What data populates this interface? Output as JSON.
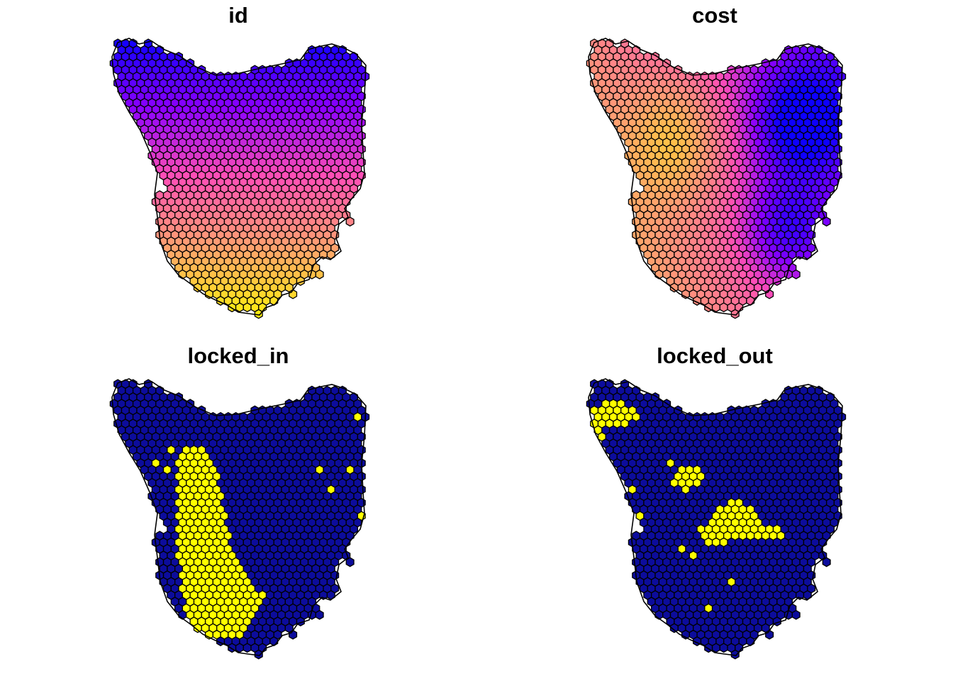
{
  "figure": {
    "panels": [
      {
        "id": "id",
        "title": "id",
        "field": "id",
        "palette": "continuous"
      },
      {
        "id": "cost",
        "title": "cost",
        "field": "cost",
        "palette": "continuous"
      },
      {
        "id": "locked_in",
        "title": "locked_in",
        "field": "locked_in",
        "palette": "binary"
      },
      {
        "id": "locked_out",
        "title": "locked_out",
        "field": "locked_out",
        "palette": "binary"
      }
    ]
  },
  "colors": {
    "outline": "#000000",
    "continuous_low": "#0d00ff",
    "continuous_mid1": "#8a00ff",
    "continuous_mid2": "#ff4fb5",
    "continuous_mid3": "#ffa070",
    "continuous_high": "#ffee10",
    "binary_false": "#0c0c9c",
    "binary_true": "#ffff00"
  }
}
